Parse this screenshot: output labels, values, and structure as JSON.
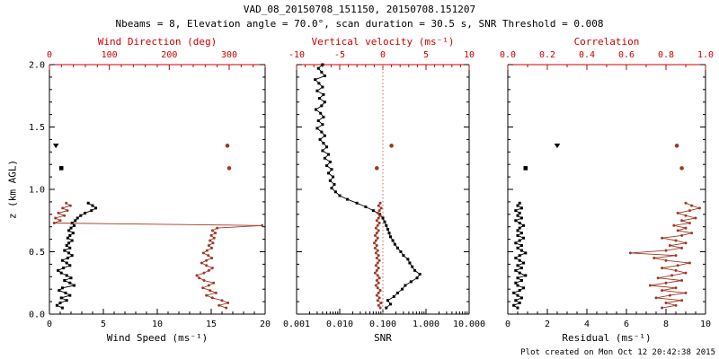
{
  "header": {
    "title": "VAD_08_20150708_151150, 20150708.151207",
    "subtitle": "Nbeams = 8, Elevation angle = 70.0°, scan duration = 30.5 s, SNR Threshold = 0.008"
  },
  "footer": {
    "created": "Plot created on Mon Oct 12 20:42:38 2015"
  },
  "axes": {
    "ylabel": "z (km AGL)"
  },
  "colors": {
    "black": "#000000",
    "axis_red": "#cc0000",
    "data_red": "#a03826",
    "ref_line": "#cc6655"
  },
  "chart_data": [
    {
      "type": "line",
      "name": "wind",
      "bottom_axis": {
        "label": "Wind Speed (ms⁻¹)",
        "scale": "linear",
        "min": 0,
        "max": 20,
        "major": [
          0,
          5,
          10,
          15,
          20
        ],
        "labels": [
          "0",
          "5",
          "10",
          "15",
          "20"
        ],
        "minor_step": 1
      },
      "top_axis": {
        "label": "Wind Direction (deg)",
        "scale": "linear",
        "min": 0,
        "max": 360,
        "major": [
          0,
          100,
          200,
          300
        ],
        "labels": [
          "0",
          "100",
          "200",
          "300"
        ],
        "minor_step": 20
      },
      "y_axis": {
        "min": 0,
        "max": 2,
        "major": [
          0,
          0.5,
          1,
          1.5,
          2
        ],
        "labels": [
          "0.0",
          "0.5",
          "1.0",
          "1.5",
          "2.0"
        ],
        "minor_step": 0.1,
        "show_labels": true
      },
      "series": [
        {
          "name": "wind-speed",
          "axis": "bottom",
          "color": "black",
          "marker": "square",
          "line": true,
          "z": [
            0.05,
            0.07,
            0.09,
            0.11,
            0.13,
            0.15,
            0.17,
            0.19,
            0.21,
            0.23,
            0.25,
            0.27,
            0.29,
            0.31,
            0.33,
            0.35,
            0.37,
            0.39,
            0.41,
            0.43,
            0.45,
            0.47,
            0.49,
            0.51,
            0.53,
            0.55,
            0.57,
            0.59,
            0.61,
            0.63,
            0.65,
            0.67,
            0.69,
            0.71,
            0.73,
            0.75,
            0.77,
            0.79,
            0.81,
            0.83,
            0.85,
            0.87,
            0.89
          ],
          "v": [
            1.2,
            0.7,
            1.0,
            1.6,
            1.1,
            1.9,
            1.5,
            0.9,
            1.2,
            2.3,
            1.9,
            1.4,
            2.0,
            1.6,
            1.1,
            0.8,
            1.3,
            1.9,
            1.6,
            1.2,
            1.7,
            2.1,
            1.8,
            1.4,
            1.9,
            1.6,
            1.8,
            2.1,
            1.7,
            1.9,
            2.2,
            1.8,
            2.0,
            2.3,
            2.1,
            2.4,
            2.6,
            2.9,
            3.3,
            3.9,
            4.3,
            4.0,
            3.6
          ]
        },
        {
          "name": "wind-direction",
          "axis": "top",
          "color": "darkred",
          "marker": "dot",
          "line": true,
          "z": [
            0.05,
            0.07,
            0.09,
            0.11,
            0.13,
            0.15,
            0.17,
            0.19,
            0.21,
            0.23,
            0.25,
            0.27,
            0.29,
            0.31,
            0.33,
            0.35,
            0.37,
            0.39,
            0.41,
            0.43,
            0.45,
            0.47,
            0.49,
            0.51,
            0.53,
            0.55,
            0.57,
            0.59,
            0.61,
            0.63,
            0.65,
            0.67,
            0.69,
            0.71,
            0.73,
            0.75,
            0.77,
            0.79,
            0.81,
            0.83,
            0.85,
            0.87,
            0.89
          ],
          "v": [
            295,
            283,
            298,
            288,
            272,
            262,
            278,
            268,
            256,
            266,
            274,
            258,
            250,
            246,
            258,
            266,
            272,
            262,
            254,
            262,
            271,
            265,
            257,
            263,
            271,
            266,
            273,
            268,
            275,
            270,
            277,
            272,
            280,
            355,
            8,
            18,
            10,
            25,
            15,
            30,
            22,
            35,
            28
          ]
        },
        {
          "name": "wind-speed-isolated",
          "axis": "bottom",
          "color": "black",
          "marker": "square",
          "line": false,
          "z": [
            1.17
          ],
          "v": [
            1.1
          ]
        },
        {
          "name": "wind-speed-isolated-triangle",
          "axis": "bottom",
          "color": "black",
          "marker": "triangle",
          "line": false,
          "z": [
            1.35
          ],
          "v": [
            0.6
          ]
        },
        {
          "name": "wind-direction-isolated",
          "axis": "top",
          "color": "darkred",
          "marker": "dot",
          "line": false,
          "z": [
            1.17,
            1.35
          ],
          "v": [
            300,
            297
          ]
        }
      ]
    },
    {
      "type": "line",
      "name": "snr",
      "bottom_axis": {
        "label": "SNR",
        "scale": "log",
        "min": 0.001,
        "max": 10,
        "major": [
          0.001,
          0.01,
          0.1,
          1,
          10
        ],
        "labels": [
          "0.001",
          "0.010",
          "0.100",
          "1.000",
          "10.000"
        ]
      },
      "top_axis": {
        "label": "Vertical velocity (ms⁻¹)",
        "scale": "linear",
        "min": -10,
        "max": 10,
        "major": [
          -10,
          -5,
          0,
          5,
          10
        ],
        "labels": [
          "-10",
          "-5",
          "0",
          "5",
          "10"
        ],
        "minor_step": 1
      },
      "y_axis": {
        "min": 0,
        "max": 2,
        "major": [
          0,
          0.5,
          1,
          1.5,
          2
        ],
        "labels": [
          "0.0",
          "0.5",
          "1.0",
          "1.5",
          "2.0"
        ],
        "minor_step": 0.1,
        "show_labels": false
      },
      "ref_line": {
        "axis": "top",
        "value": 0,
        "style": "dotted"
      },
      "series": [
        {
          "name": "snr-profile",
          "axis": "bottom",
          "color": "black",
          "marker": "square",
          "line": true,
          "z": [
            0.05,
            0.08,
            0.11,
            0.14,
            0.17,
            0.2,
            0.23,
            0.26,
            0.29,
            0.32,
            0.35,
            0.38,
            0.41,
            0.44,
            0.47,
            0.5,
            0.53,
            0.56,
            0.59,
            0.62,
            0.65,
            0.68,
            0.71,
            0.74,
            0.77,
            0.8,
            0.83,
            0.86,
            0.89,
            0.92,
            0.95,
            0.98,
            1.01,
            1.04,
            1.07,
            1.1,
            1.13,
            1.16,
            1.19,
            1.22,
            1.25,
            1.28,
            1.31,
            1.34,
            1.37,
            1.4,
            1.43,
            1.46,
            1.49,
            1.52,
            1.55,
            1.58,
            1.61,
            1.64,
            1.67,
            1.7,
            1.73,
            1.76,
            1.79,
            1.82,
            1.85,
            1.88,
            1.91,
            1.94,
            1.97,
            2.0
          ],
          "v": [
            0.12,
            0.15,
            0.13,
            0.18,
            0.22,
            0.28,
            0.33,
            0.45,
            0.62,
            0.72,
            0.55,
            0.48,
            0.42,
            0.38,
            0.3,
            0.26,
            0.22,
            0.19,
            0.17,
            0.15,
            0.14,
            0.13,
            0.12,
            0.11,
            0.1,
            0.085,
            0.06,
            0.04,
            0.025,
            0.015,
            0.01,
            0.008,
            0.0065,
            0.0075,
            0.006,
            0.007,
            0.0055,
            0.0065,
            0.005,
            0.006,
            0.0045,
            0.0055,
            0.004,
            0.005,
            0.0042,
            0.0035,
            0.0045,
            0.0038,
            0.003,
            0.004,
            0.0032,
            0.0042,
            0.0036,
            0.0028,
            0.0038,
            0.0045,
            0.0034,
            0.0042,
            0.003,
            0.004,
            0.0033,
            0.0027,
            0.0045,
            0.0038,
            0.0032,
            0.004
          ]
        },
        {
          "name": "vertical-velocity",
          "axis": "top",
          "color": "darkred",
          "marker": "dot",
          "line": true,
          "z": [
            0.05,
            0.07,
            0.09,
            0.11,
            0.13,
            0.15,
            0.17,
            0.19,
            0.21,
            0.23,
            0.25,
            0.27,
            0.29,
            0.31,
            0.33,
            0.35,
            0.37,
            0.39,
            0.41,
            0.43,
            0.45,
            0.47,
            0.49,
            0.51,
            0.53,
            0.55,
            0.57,
            0.59,
            0.61,
            0.63,
            0.65,
            0.67,
            0.69,
            0.71,
            0.73,
            0.75,
            0.77,
            0.79,
            0.81,
            0.83,
            0.85,
            0.87,
            0.89
          ],
          "v": [
            -0.3,
            -0.5,
            -0.2,
            -0.6,
            -0.4,
            -0.7,
            -0.5,
            -0.3,
            -0.6,
            -0.8,
            -0.5,
            -0.7,
            -0.4,
            -0.6,
            -0.9,
            -0.7,
            -0.5,
            -0.8,
            -0.6,
            -0.4,
            -0.7,
            -0.5,
            -0.8,
            -0.6,
            -0.9,
            -0.7,
            -1.0,
            -0.8,
            -0.6,
            -0.9,
            -0.7,
            -0.5,
            -0.8,
            -0.6,
            -0.4,
            -0.7,
            -0.5,
            -0.3,
            -0.6,
            -0.4,
            -0.2,
            -0.5,
            -0.3
          ]
        },
        {
          "name": "vertical-velocity-isolated",
          "axis": "top",
          "color": "darkred",
          "marker": "dot",
          "line": false,
          "z": [
            1.17,
            1.35
          ],
          "v": [
            -0.7,
            1.0
          ]
        }
      ]
    },
    {
      "type": "line",
      "name": "residual",
      "bottom_axis": {
        "label": "Residual (ms⁻¹)",
        "scale": "linear",
        "min": 0,
        "max": 10,
        "major": [
          0,
          2,
          4,
          6,
          8,
          10
        ],
        "labels": [
          "0",
          "2",
          "4",
          "6",
          "8",
          "10"
        ],
        "minor_step": 0.5
      },
      "top_axis": {
        "label": "Correlation",
        "scale": "linear",
        "min": 0,
        "max": 1,
        "major": [
          0,
          0.2,
          0.4,
          0.6,
          0.8,
          1.0
        ],
        "labels": [
          "0.0",
          "0.2",
          "0.4",
          "0.6",
          "0.8",
          "1.0"
        ],
        "minor_step": 0.1
      },
      "y_axis": {
        "min": 0,
        "max": 2,
        "major": [
          0,
          0.5,
          1,
          1.5,
          2
        ],
        "labels": [
          "0.0",
          "0.5",
          "1.0",
          "1.5",
          "2.0"
        ],
        "minor_step": 0.1,
        "show_labels": false
      },
      "series": [
        {
          "name": "residual-profile",
          "axis": "bottom",
          "color": "black",
          "marker": "square",
          "line": true,
          "z": [
            0.05,
            0.07,
            0.09,
            0.11,
            0.13,
            0.15,
            0.17,
            0.19,
            0.21,
            0.23,
            0.25,
            0.27,
            0.29,
            0.31,
            0.33,
            0.35,
            0.37,
            0.39,
            0.41,
            0.43,
            0.45,
            0.47,
            0.49,
            0.51,
            0.53,
            0.55,
            0.57,
            0.59,
            0.61,
            0.63,
            0.65,
            0.67,
            0.69,
            0.71,
            0.73,
            0.75,
            0.77,
            0.79,
            0.81,
            0.83,
            0.85,
            0.87,
            0.89
          ],
          "v": [
            0.5,
            0.3,
            0.6,
            0.4,
            0.7,
            0.5,
            0.3,
            0.6,
            0.8,
            0.5,
            0.4,
            0.7,
            0.5,
            0.9,
            0.6,
            0.4,
            0.7,
            0.5,
            0.8,
            0.6,
            0.4,
            0.6,
            0.9,
            0.7,
            0.5,
            0.7,
            0.4,
            0.6,
            0.8,
            0.5,
            0.7,
            0.5,
            0.6,
            0.8,
            0.6,
            0.4,
            0.7,
            0.5,
            0.6,
            0.4,
            0.7,
            0.5,
            0.6
          ]
        },
        {
          "name": "correlation",
          "axis": "top",
          "color": "darkred",
          "marker": "dot",
          "line": true,
          "z": [
            0.05,
            0.07,
            0.09,
            0.11,
            0.13,
            0.15,
            0.17,
            0.19,
            0.21,
            0.23,
            0.25,
            0.27,
            0.29,
            0.31,
            0.33,
            0.35,
            0.37,
            0.39,
            0.41,
            0.43,
            0.45,
            0.47,
            0.49,
            0.51,
            0.53,
            0.55,
            0.57,
            0.59,
            0.61,
            0.63,
            0.65,
            0.67,
            0.69,
            0.71,
            0.73,
            0.75,
            0.77,
            0.79,
            0.81,
            0.83,
            0.85,
            0.87,
            0.89
          ],
          "v": [
            0.78,
            0.85,
            0.8,
            0.88,
            0.75,
            0.82,
            0.9,
            0.78,
            0.85,
            0.72,
            0.8,
            0.88,
            0.76,
            0.83,
            0.9,
            0.85,
            0.78,
            0.86,
            0.92,
            0.8,
            0.74,
            0.85,
            0.62,
            0.8,
            0.88,
            0.82,
            0.9,
            0.85,
            0.78,
            0.88,
            0.93,
            0.86,
            0.9,
            0.84,
            0.92,
            0.88,
            0.95,
            0.9,
            0.86,
            0.92,
            0.97,
            0.93,
            0.9
          ]
        },
        {
          "name": "residual-isolated",
          "axis": "bottom",
          "color": "black",
          "marker": "square",
          "line": false,
          "z": [
            1.17
          ],
          "v": [
            0.9
          ]
        },
        {
          "name": "residual-isolated-triangle",
          "axis": "bottom",
          "color": "black",
          "marker": "triangle",
          "line": false,
          "z": [
            1.35
          ],
          "v": [
            2.5
          ]
        },
        {
          "name": "correlation-isolated",
          "axis": "top",
          "color": "darkred",
          "marker": "dot",
          "line": false,
          "z": [
            1.17,
            1.35
          ],
          "v": [
            0.88,
            0.855
          ]
        }
      ]
    }
  ]
}
